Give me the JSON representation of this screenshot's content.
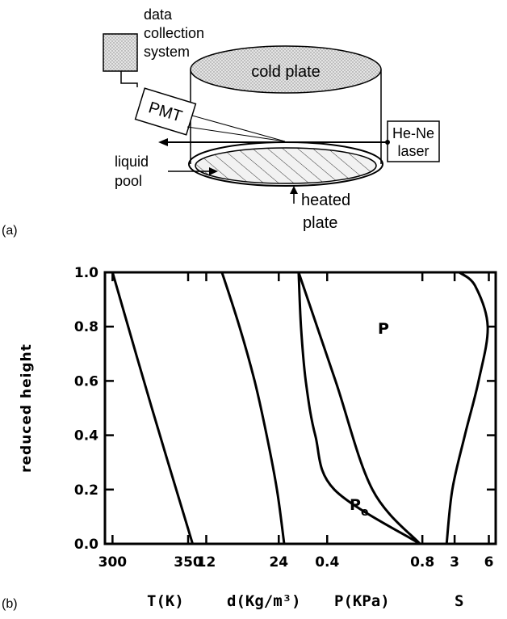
{
  "panel_a": {
    "tag": "(a)",
    "data_label_lines": [
      "data",
      "collection",
      "system"
    ],
    "pmt": "PMT",
    "cold_plate": "cold plate",
    "laser_lines": [
      "He-Ne",
      "laser"
    ],
    "pool_lines": [
      "liquid",
      "pool"
    ],
    "heated_lines": [
      "heated",
      "plate"
    ]
  },
  "panel_b": {
    "tag": "(b)",
    "ylabel": "reduced height",
    "x_titles": [
      "T(K)",
      "d(Kg/m³)",
      "P(KPa)",
      "S"
    ],
    "curve_labels": {
      "P": "P",
      "Pe": "P",
      "Pe_sub": "e"
    }
  },
  "chart_data": {
    "type": "line",
    "ylabel": "reduced height",
    "ylim": [
      0.0,
      1.0
    ],
    "y_ticks": [
      "0.0",
      "0.2",
      "0.4",
      "0.6",
      "0.8",
      "1.0"
    ],
    "panels": [
      {
        "xlabel": "T(K)",
        "xlim": [
          295,
          358
        ],
        "x_ticks": [
          "300",
          "350"
        ],
        "series": [
          {
            "name": "",
            "points": [
              [
                300,
                1.0
              ],
              [
                326,
                0.5
              ],
              [
                353,
                0.0
              ]
            ]
          }
        ]
      },
      {
        "xlabel": "d(Kg/m³)",
        "xlim": [
          11,
          26.5
        ],
        "x_ticks": [
          "12",
          "24"
        ],
        "series": [
          {
            "name": "",
            "points": [
              [
                14.6,
                1.0
              ],
              [
                17.5,
                0.8
              ],
              [
                20.0,
                0.6
              ],
              [
                22.0,
                0.4
              ],
              [
                23.7,
                0.2
              ],
              [
                24.9,
                0.0
              ]
            ]
          }
        ]
      },
      {
        "xlabel": "P(KPa)",
        "xlim": [
          0.26,
          0.83
        ],
        "x_ticks": [
          "0.4",
          "0.8"
        ],
        "series": [
          {
            "name": "P",
            "points": [
              [
                0.28,
                1.0
              ],
              [
                0.435,
                0.6
              ],
              [
                0.59,
                0.2
              ],
              [
                0.79,
                0.0
              ]
            ]
          },
          {
            "name": "Pe",
            "points": [
              [
                0.28,
                1.0
              ],
              [
                0.29,
                0.8
              ],
              [
                0.31,
                0.6
              ],
              [
                0.35,
                0.4
              ],
              [
                0.43,
                0.2
              ],
              [
                0.79,
                0.0
              ]
            ]
          }
        ]
      },
      {
        "xlabel": "S",
        "xlim": [
          0.8,
          6.6
        ],
        "x_ticks": [
          "3",
          "6"
        ],
        "series": [
          {
            "name": "",
            "points": [
              [
                3.4,
                1.0
              ],
              [
                4.8,
                0.95
              ],
              [
                5.9,
                0.8
              ],
              [
                5.1,
                0.6
              ],
              [
                3.9,
                0.4
              ],
              [
                2.8,
                0.2
              ],
              [
                2.3,
                0.0
              ]
            ]
          }
        ]
      }
    ],
    "grid": false,
    "legend": "none"
  }
}
